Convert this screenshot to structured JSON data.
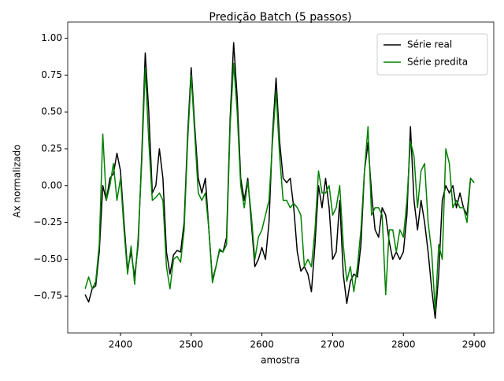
{
  "chart_data": {
    "type": "line",
    "title": "Predição Batch (5 passos)",
    "xlabel": "amostra",
    "ylabel": "Ax normalizado",
    "x": [
      2350,
      2355,
      2360,
      2365,
      2370,
      2375,
      2380,
      2385,
      2390,
      2395,
      2400,
      2405,
      2410,
      2415,
      2420,
      2425,
      2430,
      2435,
      2440,
      2445,
      2450,
      2455,
      2460,
      2465,
      2470,
      2475,
      2480,
      2485,
      2490,
      2495,
      2500,
      2505,
      2510,
      2515,
      2520,
      2525,
      2530,
      2535,
      2540,
      2545,
      2550,
      2555,
      2560,
      2565,
      2570,
      2575,
      2580,
      2585,
      2590,
      2595,
      2600,
      2605,
      2610,
      2615,
      2620,
      2625,
      2630,
      2635,
      2640,
      2645,
      2650,
      2655,
      2660,
      2665,
      2670,
      2675,
      2680,
      2685,
      2690,
      2695,
      2700,
      2705,
      2710,
      2715,
      2720,
      2725,
      2730,
      2735,
      2740,
      2745,
      2750,
      2755,
      2760,
      2765,
      2770,
      2775,
      2780,
      2785,
      2790,
      2795,
      2800,
      2805,
      2810,
      2815,
      2820,
      2825,
      2830,
      2835,
      2840,
      2845,
      2850,
      2855,
      2860,
      2865,
      2870,
      2875,
      2880,
      2885,
      2890,
      2895,
      2900
    ],
    "series": [
      {
        "name": "Série real",
        "color": "#000000",
        "values": [
          -0.74,
          -0.79,
          -0.7,
          -0.68,
          -0.45,
          0.0,
          -0.1,
          0.05,
          0.08,
          0.22,
          0.1,
          -0.25,
          -0.57,
          -0.45,
          -0.62,
          -0.4,
          0.2,
          0.9,
          0.5,
          -0.05,
          0.0,
          0.25,
          0.05,
          -0.45,
          -0.6,
          -0.47,
          -0.44,
          -0.45,
          -0.25,
          0.35,
          0.8,
          0.4,
          0.05,
          -0.05,
          0.05,
          -0.3,
          -0.64,
          -0.55,
          -0.44,
          -0.45,
          -0.35,
          0.45,
          0.97,
          0.6,
          0.05,
          -0.1,
          0.05,
          -0.25,
          -0.55,
          -0.5,
          -0.42,
          -0.5,
          -0.25,
          0.35,
          0.73,
          0.3,
          0.05,
          0.02,
          0.05,
          -0.15,
          -0.45,
          -0.58,
          -0.55,
          -0.6,
          -0.72,
          -0.4,
          0.0,
          -0.15,
          0.05,
          -0.15,
          -0.5,
          -0.45,
          -0.1,
          -0.6,
          -0.8,
          -0.65,
          -0.6,
          -0.62,
          -0.4,
          0.1,
          0.29,
          -0.05,
          -0.3,
          -0.35,
          -0.15,
          -0.2,
          -0.38,
          -0.5,
          -0.45,
          -0.5,
          -0.45,
          -0.2,
          0.4,
          -0.1,
          -0.3,
          -0.1,
          -0.25,
          -0.45,
          -0.7,
          -0.9,
          -0.6,
          -0.1,
          0.0,
          -0.05,
          0.0,
          -0.15,
          -0.05,
          -0.15,
          -0.2,
          0.05,
          0.02
        ]
      },
      {
        "name": "Série predita",
        "color": "#008000",
        "values": [
          -0.7,
          -0.62,
          -0.7,
          -0.65,
          -0.4,
          0.35,
          -0.1,
          0.0,
          0.15,
          -0.1,
          0.05,
          -0.3,
          -0.6,
          -0.41,
          -0.67,
          -0.35,
          0.15,
          0.8,
          0.3,
          -0.1,
          -0.08,
          -0.05,
          -0.1,
          -0.55,
          -0.7,
          -0.5,
          -0.48,
          -0.52,
          -0.3,
          0.3,
          0.75,
          0.35,
          -0.05,
          -0.1,
          -0.05,
          -0.3,
          -0.66,
          -0.55,
          -0.43,
          -0.45,
          -0.4,
          0.4,
          0.83,
          0.5,
          0.0,
          -0.15,
          0.03,
          -0.2,
          -0.5,
          -0.35,
          -0.3,
          -0.2,
          -0.1,
          0.3,
          0.64,
          0.2,
          -0.1,
          -0.1,
          -0.15,
          -0.12,
          -0.15,
          -0.2,
          -0.55,
          -0.5,
          -0.55,
          -0.3,
          0.1,
          -0.05,
          -0.05,
          0.0,
          -0.2,
          -0.15,
          0.0,
          -0.4,
          -0.65,
          -0.55,
          -0.72,
          -0.55,
          -0.3,
          0.1,
          0.4,
          -0.2,
          -0.15,
          -0.15,
          -0.2,
          -0.74,
          -0.3,
          -0.3,
          -0.45,
          -0.3,
          -0.35,
          -0.1,
          0.3,
          0.2,
          -0.15,
          0.1,
          0.15,
          -0.25,
          -0.45,
          -0.85,
          -0.4,
          -0.5,
          0.25,
          0.15,
          -0.15,
          -0.1,
          -0.15,
          -0.15,
          -0.25,
          0.05,
          0.02
        ]
      }
    ],
    "xlim": [
      2325.4,
      2927.8
    ],
    "xticks": [
      2400,
      2500,
      2600,
      2700,
      2800,
      2900
    ],
    "ylim": [
      -1.0,
      1.11
    ],
    "yticks": [
      {
        "value": -0.75,
        "label": "−0.75"
      },
      {
        "value": -0.5,
        "label": "−0.50"
      },
      {
        "value": -0.25,
        "label": "−0.25"
      },
      {
        "value": 0,
        "label": "0.00"
      },
      {
        "value": 0.25,
        "label": "0.25"
      },
      {
        "value": 0.5,
        "label": "0.50"
      },
      {
        "value": 0.75,
        "label": "0.75"
      },
      {
        "value": 1,
        "label": "1.00"
      }
    ],
    "legend": "upper right"
  }
}
